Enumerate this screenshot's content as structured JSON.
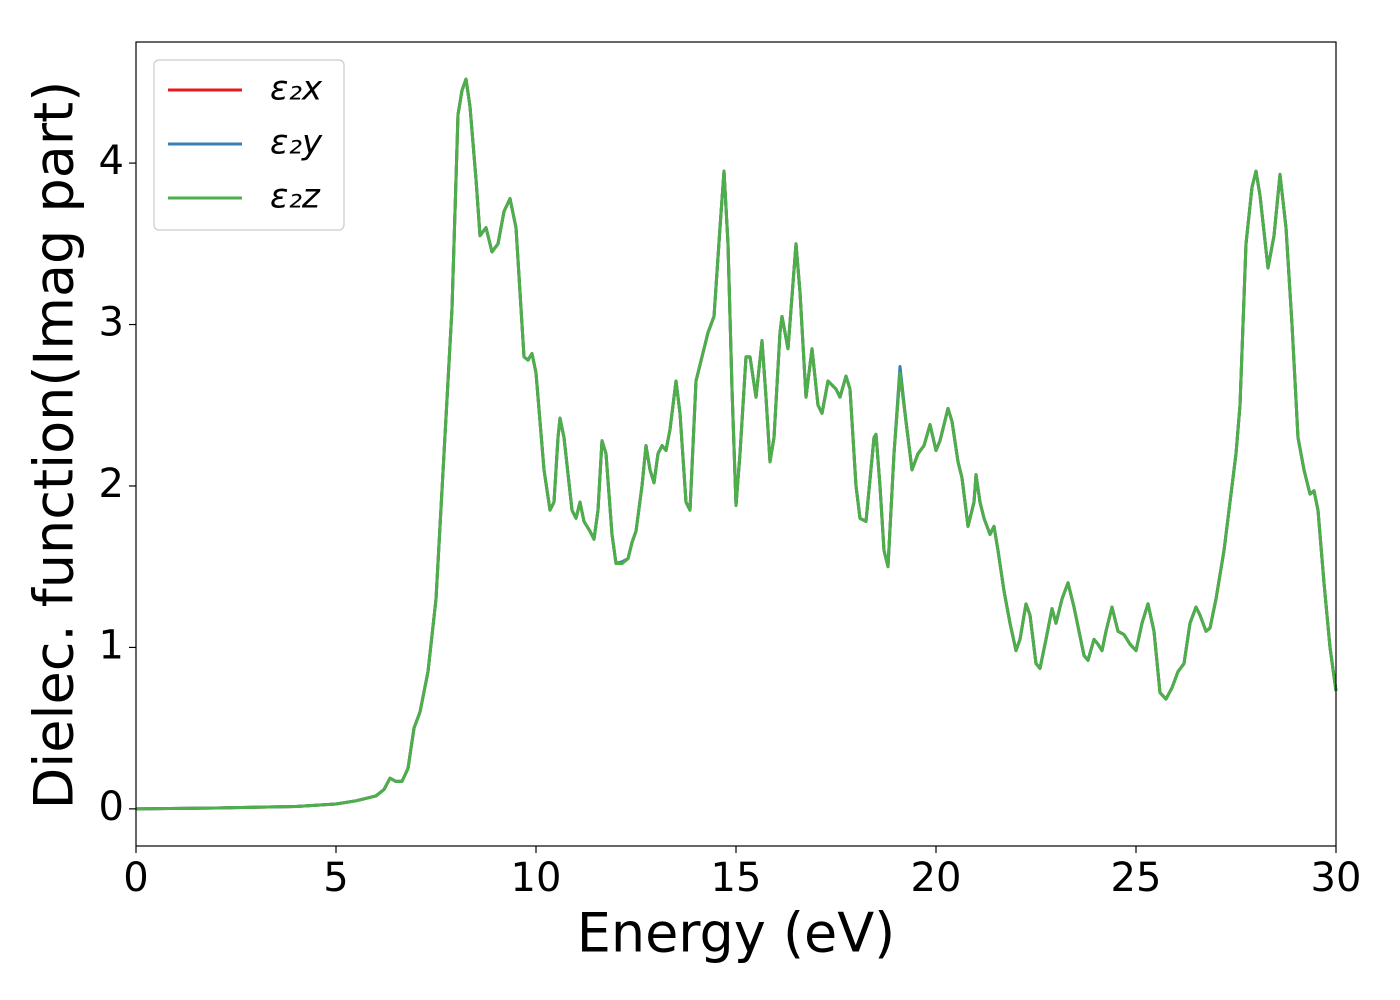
{
  "chart_data": {
    "type": "line",
    "xlabel": "Energy (eV)",
    "ylabel": "Dielec. function(Imag part)",
    "xlim": [
      0,
      30
    ],
    "ylim": [
      -0.23,
      4.75
    ],
    "xticks": [
      0,
      5,
      10,
      15,
      20,
      25,
      30
    ],
    "yticks": [
      0,
      1,
      2,
      3,
      4
    ],
    "legend": "upper left",
    "x": [
      0,
      2,
      4,
      5,
      5.5,
      6,
      6.2,
      6.35,
      6.5,
      6.65,
      6.8,
      6.95,
      7.1,
      7.3,
      7.5,
      7.7,
      7.9,
      8.05,
      8.15,
      8.25,
      8.35,
      8.5,
      8.6,
      8.75,
      8.9,
      9.05,
      9.2,
      9.35,
      9.5,
      9.7,
      9.8,
      9.9,
      10,
      10.2,
      10.35,
      10.45,
      10.55,
      10.6,
      10.7,
      10.9,
      11,
      11.1,
      11.2,
      11.35,
      11.45,
      11.55,
      11.65,
      11.75,
      11.9,
      12,
      12.15,
      12.3,
      12.4,
      12.5,
      12.65,
      12.75,
      12.85,
      12.95,
      13.05,
      13.15,
      13.25,
      13.35,
      13.5,
      13.6,
      13.75,
      13.85,
      14,
      14.15,
      14.3,
      14.45,
      14.6,
      14.7,
      14.8,
      14.9,
      15,
      15.1,
      15.25,
      15.35,
      15.5,
      15.65,
      15.75,
      15.85,
      15.95,
      16.1,
      16.15,
      16.3,
      16.5,
      16.6,
      16.75,
      16.9,
      17.05,
      17.15,
      17.3,
      17.5,
      17.6,
      17.75,
      17.85,
      18,
      18.1,
      18.25,
      18.45,
      18.5,
      18.6,
      18.7,
      18.8,
      18.95,
      19.1,
      19.25,
      19.4,
      19.55,
      19.7,
      19.85,
      20,
      20.1,
      20.3,
      20.4,
      20.55,
      20.65,
      20.8,
      20.95,
      21,
      21.1,
      21.2,
      21.35,
      21.45,
      21.55,
      21.7,
      21.85,
      22,
      22.1,
      22.25,
      22.35,
      22.5,
      22.6,
      22.75,
      22.9,
      23,
      23.15,
      23.3,
      23.45,
      23.7,
      23.8,
      23.95,
      24.05,
      24.15,
      24.25,
      24.4,
      24.55,
      24.7,
      24.85,
      25,
      25.15,
      25.3,
      25.45,
      25.6,
      25.75,
      25.9,
      26.05,
      26.2,
      26.35,
      26.5,
      26.6,
      26.75,
      26.85,
      27,
      27.2,
      27.5,
      27.6,
      27.75,
      27.9,
      28,
      28.1,
      28.3,
      28.45,
      28.6,
      28.75,
      28.9,
      29.05,
      29.2,
      29.35,
      29.45,
      29.55,
      29.7,
      29.85,
      30
    ],
    "series": [
      {
        "name": "ε₂x",
        "color": "#e41a1c",
        "values": [
          0,
          0.005,
          0.015,
          0.03,
          0.05,
          0.08,
          0.12,
          0.19,
          0.17,
          0.17,
          0.25,
          0.5,
          0.6,
          0.85,
          1.3,
          2.2,
          3.1,
          4.3,
          4.45,
          4.52,
          4.35,
          3.9,
          3.55,
          3.6,
          3.45,
          3.5,
          3.7,
          3.78,
          3.6,
          2.8,
          2.78,
          2.82,
          2.7,
          2.1,
          1.85,
          1.9,
          2.3,
          2.42,
          2.3,
          1.85,
          1.8,
          1.9,
          1.78,
          1.72,
          1.67,
          1.85,
          2.28,
          2.2,
          1.7,
          1.52,
          1.52,
          1.55,
          1.65,
          1.72,
          2,
          2.25,
          2.1,
          2.02,
          2.2,
          2.25,
          2.22,
          2.35,
          2.65,
          2.45,
          1.9,
          1.85,
          2.65,
          2.8,
          2.95,
          3.05,
          3.6,
          3.95,
          3.5,
          2.6,
          1.88,
          2.2,
          2.8,
          2.8,
          2.55,
          2.9,
          2.55,
          2.15,
          2.3,
          2.95,
          3.05,
          2.85,
          3.5,
          3.2,
          2.55,
          2.85,
          2.5,
          2.45,
          2.65,
          2.6,
          2.55,
          2.68,
          2.6,
          2,
          1.8,
          1.78,
          2.3,
          2.32,
          2,
          1.6,
          1.5,
          2.2,
          2.7,
          2.4,
          2.1,
          2.2,
          2.25,
          2.38,
          2.22,
          2.28,
          2.48,
          2.4,
          2.15,
          2.05,
          1.75,
          1.9,
          2.07,
          1.9,
          1.8,
          1.7,
          1.75,
          1.6,
          1.35,
          1.15,
          0.98,
          1.05,
          1.27,
          1.2,
          0.9,
          0.87,
          1.05,
          1.24,
          1.15,
          1.3,
          1.4,
          1.25,
          0.95,
          0.92,
          1.05,
          1.02,
          0.98,
          1.1,
          1.25,
          1.1,
          1.08,
          1.02,
          0.98,
          1.15,
          1.27,
          1.1,
          0.72,
          0.68,
          0.75,
          0.85,
          0.9,
          1.15,
          1.25,
          1.2,
          1.1,
          1.12,
          1.3,
          1.6,
          2.2,
          2.5,
          3.5,
          3.85,
          3.95,
          3.8,
          3.35,
          3.55,
          3.93,
          3.6,
          3,
          2.3,
          2.1,
          1.95,
          1.97,
          1.85,
          1.4,
          1,
          0.73
        ]
      },
      {
        "name": "ε₂y",
        "color": "#377eb8",
        "values": [
          0,
          0.005,
          0.015,
          0.03,
          0.05,
          0.08,
          0.12,
          0.19,
          0.17,
          0.17,
          0.25,
          0.5,
          0.6,
          0.85,
          1.3,
          2.2,
          3.1,
          4.3,
          4.45,
          4.52,
          4.35,
          3.9,
          3.55,
          3.6,
          3.45,
          3.5,
          3.7,
          3.78,
          3.6,
          2.8,
          2.78,
          2.82,
          2.7,
          2.1,
          1.85,
          1.9,
          2.3,
          2.42,
          2.3,
          1.85,
          1.8,
          1.9,
          1.78,
          1.72,
          1.67,
          1.85,
          2.28,
          2.2,
          1.7,
          1.52,
          1.53,
          1.55,
          1.65,
          1.72,
          2,
          2.25,
          2.1,
          2.02,
          2.2,
          2.25,
          2.22,
          2.35,
          2.65,
          2.45,
          1.9,
          1.85,
          2.65,
          2.8,
          2.95,
          3.05,
          3.6,
          3.95,
          3.5,
          2.6,
          1.88,
          2.2,
          2.8,
          2.8,
          2.55,
          2.9,
          2.55,
          2.15,
          2.3,
          2.95,
          3.05,
          2.85,
          3.5,
          3.2,
          2.55,
          2.85,
          2.5,
          2.45,
          2.65,
          2.6,
          2.55,
          2.68,
          2.6,
          2,
          1.8,
          1.78,
          2.3,
          2.32,
          2,
          1.6,
          1.5,
          2.2,
          2.74,
          2.4,
          2.1,
          2.2,
          2.25,
          2.38,
          2.22,
          2.28,
          2.48,
          2.4,
          2.15,
          2.05,
          1.75,
          1.9,
          2.07,
          1.9,
          1.8,
          1.7,
          1.75,
          1.6,
          1.35,
          1.15,
          0.98,
          1.05,
          1.27,
          1.2,
          0.9,
          0.87,
          1.05,
          1.24,
          1.15,
          1.3,
          1.4,
          1.25,
          0.95,
          0.92,
          1.05,
          1.02,
          0.98,
          1.1,
          1.25,
          1.1,
          1.08,
          1.02,
          0.98,
          1.15,
          1.27,
          1.1,
          0.72,
          0.68,
          0.75,
          0.85,
          0.9,
          1.15,
          1.25,
          1.2,
          1.1,
          1.12,
          1.3,
          1.6,
          2.2,
          2.5,
          3.5,
          3.85,
          3.95,
          3.8,
          3.35,
          3.55,
          3.93,
          3.6,
          3,
          2.3,
          2.1,
          1.95,
          1.97,
          1.85,
          1.4,
          1,
          0.73
        ]
      },
      {
        "name": "ε₂z",
        "color": "#4daf4a",
        "values": [
          0,
          0.005,
          0.015,
          0.03,
          0.05,
          0.08,
          0.12,
          0.19,
          0.17,
          0.17,
          0.25,
          0.5,
          0.6,
          0.85,
          1.3,
          2.2,
          3.1,
          4.3,
          4.45,
          4.52,
          4.35,
          3.9,
          3.55,
          3.6,
          3.45,
          3.5,
          3.7,
          3.78,
          3.6,
          2.8,
          2.78,
          2.82,
          2.7,
          2.1,
          1.85,
          1.9,
          2.3,
          2.42,
          2.3,
          1.85,
          1.8,
          1.9,
          1.78,
          1.72,
          1.67,
          1.85,
          2.28,
          2.2,
          1.7,
          1.52,
          1.52,
          1.55,
          1.65,
          1.72,
          2,
          2.25,
          2.1,
          2.02,
          2.2,
          2.25,
          2.22,
          2.35,
          2.65,
          2.45,
          1.9,
          1.85,
          2.65,
          2.8,
          2.95,
          3.05,
          3.6,
          3.95,
          3.5,
          2.6,
          1.88,
          2.2,
          2.8,
          2.8,
          2.55,
          2.9,
          2.55,
          2.15,
          2.3,
          2.95,
          3.05,
          2.85,
          3.5,
          3.2,
          2.55,
          2.85,
          2.5,
          2.45,
          2.65,
          2.6,
          2.55,
          2.68,
          2.6,
          2,
          1.8,
          1.78,
          2.3,
          2.32,
          2,
          1.6,
          1.5,
          2.2,
          2.7,
          2.4,
          2.1,
          2.2,
          2.25,
          2.38,
          2.22,
          2.28,
          2.48,
          2.4,
          2.15,
          2.05,
          1.75,
          1.9,
          2.07,
          1.9,
          1.8,
          1.7,
          1.75,
          1.6,
          1.35,
          1.15,
          0.98,
          1.05,
          1.27,
          1.2,
          0.9,
          0.87,
          1.05,
          1.24,
          1.15,
          1.3,
          1.4,
          1.25,
          0.95,
          0.92,
          1.05,
          1.02,
          0.98,
          1.1,
          1.25,
          1.1,
          1.08,
          1.02,
          0.98,
          1.15,
          1.27,
          1.1,
          0.72,
          0.68,
          0.75,
          0.85,
          0.9,
          1.15,
          1.25,
          1.2,
          1.1,
          1.12,
          1.3,
          1.6,
          2.2,
          2.5,
          3.5,
          3.85,
          3.95,
          3.8,
          3.35,
          3.55,
          3.93,
          3.6,
          3,
          2.3,
          2.1,
          1.95,
          1.97,
          1.85,
          1.4,
          1,
          0.73
        ]
      }
    ]
  }
}
